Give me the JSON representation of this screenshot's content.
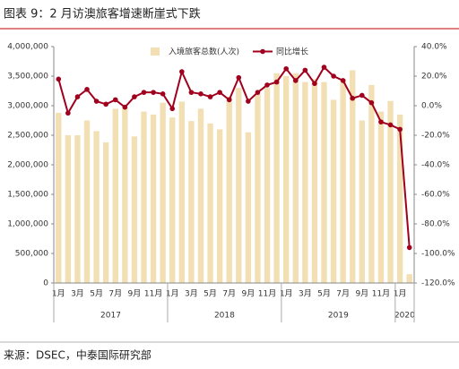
{
  "chart_data": {
    "type": "bar-line",
    "title": "图表 9：2 月访澳旅客增速断崖式下跌",
    "source": "来源：DSEC，中泰国际研究部",
    "categories": [
      "1月",
      null,
      "3月",
      null,
      "5月",
      null,
      "7月",
      null,
      "9月",
      null,
      "11月",
      null,
      "1月",
      null,
      "3月",
      null,
      "5月",
      null,
      "7月",
      null,
      "9月",
      null,
      "11月",
      null,
      "1月",
      null,
      "3月",
      null,
      "5月",
      null,
      "7月",
      null,
      "9月",
      null,
      "11月",
      null,
      "1月",
      null
    ],
    "year_labels": [
      "2017",
      "2018",
      "2019",
      "2020"
    ],
    "series": [
      {
        "name": "入境旅客总数(人次)",
        "type": "bar",
        "color": "#f2dfb4",
        "values": [
          2880000,
          2500000,
          2500000,
          2750000,
          2570000,
          2380000,
          2950000,
          2970000,
          2480000,
          2900000,
          2850000,
          3050000,
          2800000,
          3070000,
          2740000,
          2950000,
          2700000,
          2600000,
          3150000,
          3300000,
          2550000,
          3200000,
          3300000,
          3550000,
          3500000,
          3550000,
          3400000,
          3450000,
          3400000,
          3100000,
          3450000,
          3600000,
          2750000,
          3350000,
          2900000,
          3080000,
          2850000,
          150000
        ]
      },
      {
        "name": "同比增长",
        "type": "line",
        "axis": "y2",
        "color": "#a0001e",
        "values": [
          18,
          -5,
          6,
          11,
          3,
          1,
          4,
          -1,
          6,
          9,
          9,
          8,
          -2,
          23,
          9,
          8,
          6,
          9,
          4,
          19,
          3,
          9,
          14,
          16,
          25,
          17,
          24,
          15,
          26,
          20,
          17,
          5,
          7,
          2,
          -11,
          -13,
          -16,
          -96
        ]
      }
    ],
    "ylim": [
      0,
      4000000
    ],
    "yticks": [
      0,
      {
        "value": 500000,
        "label": "500,000"
      },
      {
        "value": 1000000,
        "label": "1,000,000"
      },
      {
        "value": 1500000,
        "label": "1,500,000"
      },
      {
        "value": 2000000,
        "label": "2,000,000"
      },
      {
        "value": 2500000,
        "label": "2,500,000"
      },
      {
        "value": 3000000,
        "label": "3,000,000"
      },
      {
        "value": 3500000,
        "label": "3,500,000"
      },
      {
        "value": 4000000,
        "label": "4,000,000"
      }
    ],
    "y2lim": [
      -120,
      40
    ],
    "y2ticks": [
      {
        "value": -120,
        "label": "-120.0%"
      },
      {
        "value": -100,
        "label": "-100.0%"
      },
      {
        "value": -80,
        "label": "-80.0%"
      },
      {
        "value": -60,
        "label": "-60.0%"
      },
      {
        "value": -40,
        "label": "-40.0%"
      },
      {
        "value": -20,
        "label": "-20.0%"
      },
      {
        "value": 0,
        "label": "0.0%"
      },
      {
        "value": 20,
        "label": "20.0%"
      },
      {
        "value": 40,
        "label": "40.0%"
      }
    ],
    "grid": false
  }
}
